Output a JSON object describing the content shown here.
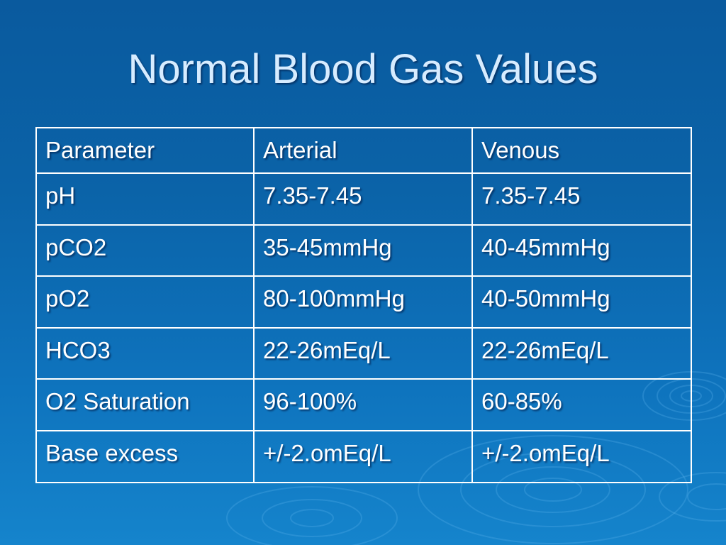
{
  "slide": {
    "title": "Normal Blood Gas Values"
  },
  "table": {
    "headers": [
      "Parameter",
      "Arterial",
      "Venous"
    ],
    "rows": [
      [
        "pH",
        "7.35-7.45",
        "7.35-7.45"
      ],
      [
        "pCO2",
        "35-45mmHg",
        "40-45mmHg"
      ],
      [
        "pO2",
        "80-100mmHg",
        "40-50mmHg"
      ],
      [
        "HCO3",
        "22-26mEq/L",
        "22-26mEq/L"
      ],
      [
        "O2 Saturation",
        "96-100%",
        "60-85%"
      ],
      [
        "Base excess",
        "+/-2.omEq/L",
        "+/-2.omEq/L"
      ]
    ]
  },
  "colors": {
    "background": "#0b63a8",
    "title_text": "#d7ecff",
    "table_border": "#ffffff",
    "table_text": "#ffffff"
  }
}
